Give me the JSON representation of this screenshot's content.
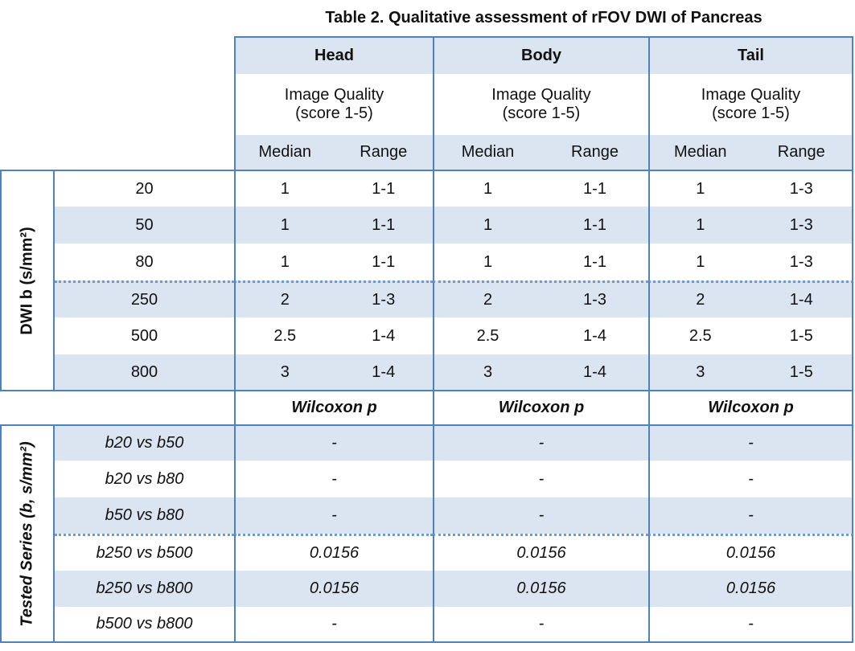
{
  "title": "Table 2. Qualitative assessment of rFOV DWI of Pancreas",
  "colors": {
    "accent_fill": "#dbe5f1",
    "border_blue": "#4f81bd",
    "dotted_blue": "#6d9ad1",
    "text": "#111111"
  },
  "header": {
    "groups": [
      "Head",
      "Body",
      "Tail"
    ],
    "quality_line1": "Image Quality",
    "quality_line2": "(score 1-5)",
    "col_median": "Median",
    "col_range": "Range"
  },
  "dwi": {
    "axis_label": "DWI b (s/mm²)",
    "rows": [
      {
        "label": "20",
        "head_median": "1",
        "head_range": "1-1",
        "body_median": "1",
        "body_range": "1-1",
        "tail_median": "1",
        "tail_range": "1-3"
      },
      {
        "label": "50",
        "head_median": "1",
        "head_range": "1-1",
        "body_median": "1",
        "body_range": "1-1",
        "tail_median": "1",
        "tail_range": "1-3"
      },
      {
        "label": "80",
        "head_median": "1",
        "head_range": "1-1",
        "body_median": "1",
        "body_range": "1-1",
        "tail_median": "1",
        "tail_range": "1-3"
      },
      {
        "label": "250",
        "head_median": "2",
        "head_range": "1-3",
        "body_median": "2",
        "body_range": "1-3",
        "tail_median": "2",
        "tail_range": "1-4"
      },
      {
        "label": "500",
        "head_median": "2.5",
        "head_range": "1-4",
        "body_median": "2.5",
        "body_range": "1-4",
        "tail_median": "2.5",
        "tail_range": "1-5"
      },
      {
        "label": "800",
        "head_median": "3",
        "head_range": "1-4",
        "body_median": "3",
        "body_range": "1-4",
        "tail_median": "3",
        "tail_range": "1-5"
      }
    ]
  },
  "sections": {
    "wilcoxon_label": "Wilcoxon p"
  },
  "tested": {
    "axis_label": "Tested Series (b, s/mm²)",
    "rows": [
      {
        "label": "b20 vs b50",
        "head": "-",
        "body": "-",
        "tail": "-"
      },
      {
        "label": "b20 vs b80",
        "head": "-",
        "body": "-",
        "tail": "-"
      },
      {
        "label": "b50 vs b80",
        "head": "-",
        "body": "-",
        "tail": "-"
      },
      {
        "label": "b250 vs b500",
        "head": "0.0156",
        "body": "0.0156",
        "tail": "0.0156"
      },
      {
        "label": "b250 vs b800",
        "head": "0.0156",
        "body": "0.0156",
        "tail": "0.0156"
      },
      {
        "label": "b500 vs b800",
        "head": "-",
        "body": "-",
        "tail": "-"
      }
    ]
  }
}
